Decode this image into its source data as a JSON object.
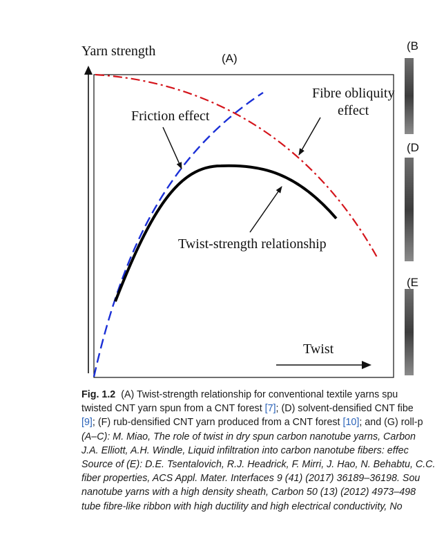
{
  "figure": {
    "panel_label": "(A)",
    "y_axis_label": "Yarn strength",
    "x_axis_label": "Twist",
    "annotations": {
      "friction": "Friction effect",
      "obliquity_line1": "Fibre obliquity",
      "obliquity_line2": "effect",
      "twist_strength": "Twist-strength relationship"
    },
    "curves": [
      {
        "name": "Friction effect",
        "color": "#1a2fd6",
        "style": "dashed"
      },
      {
        "name": "Fibre obliquity effect",
        "color": "#d4141b",
        "style": "dash-dot"
      },
      {
        "name": "Twist-strength relationship",
        "color": "#000000",
        "style": "solid"
      }
    ],
    "side_panels": [
      "(B",
      "(D",
      "(E"
    ]
  },
  "caption": {
    "fig_label": "Fig. 1.2",
    "line1": "(A) Twist-strength relationship for conventional textile yarns spu",
    "line2_a": "twisted CNT yarn spun from a CNT forest ",
    "ref7": "[7]",
    "line2_b": "; (D) solvent-densified CNT fibe",
    "ref9": "[9]",
    "line3_a": "; (F) rub-densified CNT yarn produced from a CNT forest ",
    "ref10": "[10]",
    "line3_b": "; and (G) roll-p",
    "line4": "(A–C): M. Miao, The role of twist in dry spun carbon nanotube yarns, Carbon",
    "line5": "J.A. Elliott, A.H. Windle, Liquid infiltration into carbon nanotube fibers: effec",
    "line6": "Source of (E): D.E. Tsentalovich, R.J. Headrick, F. Mirri, J. Hao, N. Behabtu, C.C.",
    "line7": "fiber properties, ACS Appl. Mater. Interfaces 9 (41) (2017) 36189–36198. Sou",
    "line8": "nanotube yarns with a high density sheath, Carbon 50 (13) (2012) 4973–498",
    "line9": "tube fibre-like ribbon with high ductility and high electrical conductivity, No"
  }
}
